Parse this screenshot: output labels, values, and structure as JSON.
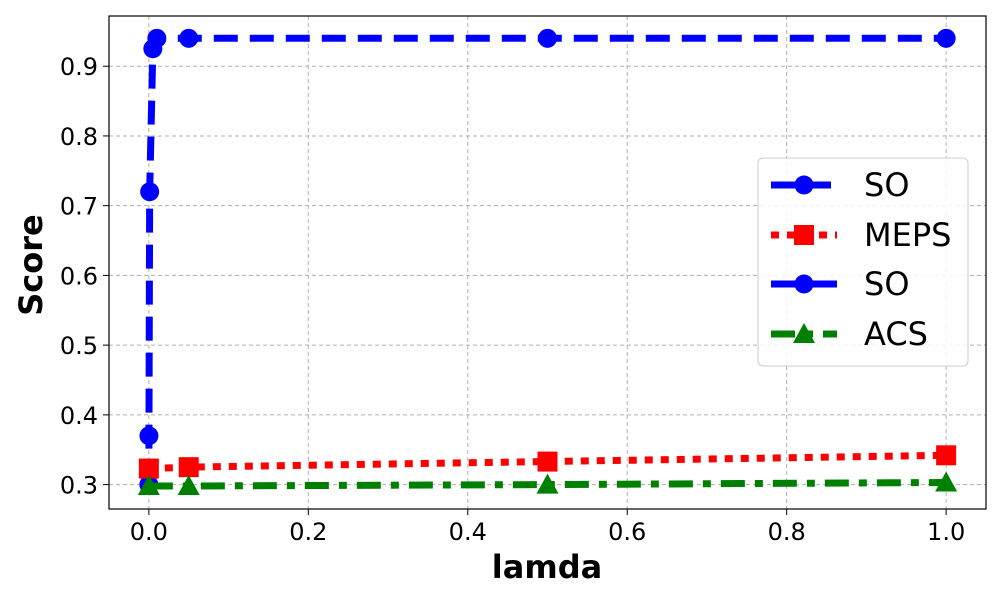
{
  "chart_data": {
    "type": "line",
    "xlabel": "lamda",
    "ylabel": "Score",
    "xlim": [
      -0.05,
      1.05
    ],
    "ylim": [
      0.265,
      0.972
    ],
    "xticks": [
      "0.0",
      "0.2",
      "0.4",
      "0.6",
      "0.8",
      "1.0"
    ],
    "yticks": [
      "0.3",
      "0.4",
      "0.5",
      "0.6",
      "0.7",
      "0.8",
      "0.9"
    ],
    "grid": true,
    "legend_position": "right",
    "series": [
      {
        "name": "SO",
        "color": "#0000ff",
        "marker": "circle",
        "linestyle": "dashed",
        "x": [
          0,
          0.0001,
          0.001,
          0.005,
          0.01,
          0.05,
          0.5,
          1.0
        ],
        "y": [
          0.3,
          0.37,
          0.72,
          0.925,
          0.94,
          0.94,
          0.94,
          0.94
        ]
      },
      {
        "name": "MEPS",
        "color": "#ff0000",
        "marker": "square",
        "linestyle": "dotted",
        "x": [
          0,
          0.05,
          0.5,
          1.0
        ],
        "y": [
          0.323,
          0.325,
          0.333,
          0.342
        ]
      },
      {
        "name": "SO",
        "color": "#0000ff",
        "marker": "circle",
        "linestyle": "solid",
        "x": [],
        "y": []
      },
      {
        "name": "ACS",
        "color": "#008000",
        "marker": "triangle",
        "linestyle": "dashdot",
        "x": [
          0,
          0.05,
          0.5,
          1.0
        ],
        "y": [
          0.298,
          0.298,
          0.3,
          0.303
        ]
      }
    ]
  }
}
